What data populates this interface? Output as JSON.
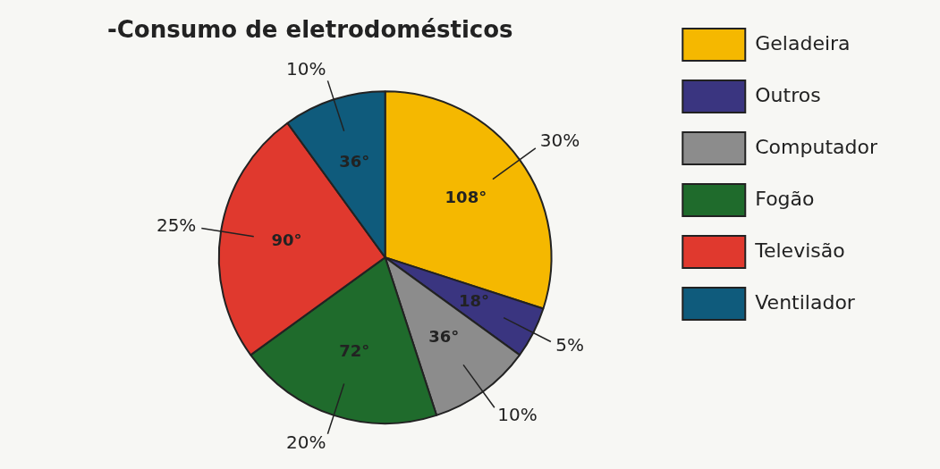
{
  "chart_data": {
    "type": "pie",
    "title": "-Consumo de eletrodomésticos",
    "categories": [
      "Geladeira",
      "Outros",
      "Computador",
      "Fogão",
      "Televisão",
      "Ventilador"
    ],
    "values": [
      30,
      5,
      10,
      20,
      25,
      10
    ],
    "value_labels": [
      "30%",
      "5%",
      "10%",
      "20%",
      "25%",
      "10%"
    ],
    "angle_labels": [
      "108°",
      "18°",
      "36°",
      "72°",
      "90°",
      "36°"
    ],
    "colors": [
      "#f5b800",
      "#3a3580",
      "#8c8c8c",
      "#1f6b2c",
      "#e0392e",
      "#0f5b7c"
    ],
    "legend": "right",
    "data_labels": true
  }
}
